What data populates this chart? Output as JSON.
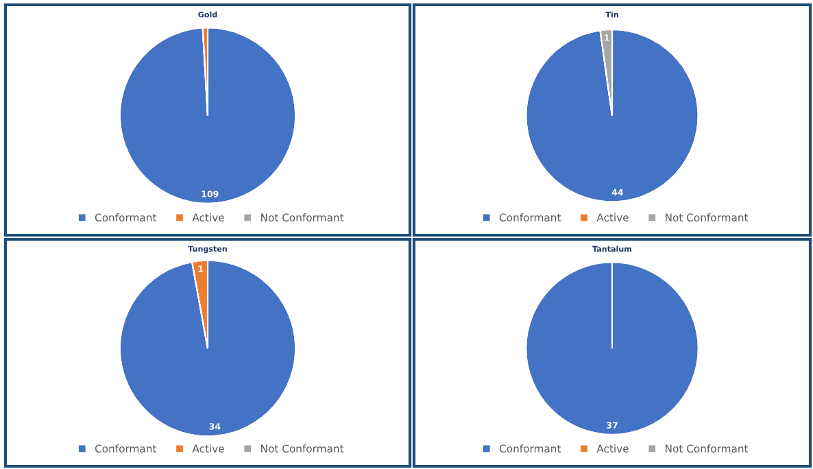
{
  "chart_data": [
    {
      "type": "pie",
      "title": "Gold",
      "categories": [
        "Conformant",
        "Active",
        "Not Conformant"
      ],
      "values": [
        109,
        1,
        0
      ],
      "colors": [
        "#4472c4",
        "#ed7d31",
        "#a5a5a5"
      ],
      "value_labels": [
        "109",
        null,
        null
      ],
      "legend": "bottom"
    },
    {
      "type": "pie",
      "title": "Tin",
      "categories": [
        "Conformant",
        "Active",
        "Not Conformant"
      ],
      "values": [
        44,
        0,
        1
      ],
      "colors": [
        "#4472c4",
        "#ed7d31",
        "#a5a5a5"
      ],
      "value_labels": [
        "44",
        null,
        "1"
      ],
      "legend": "bottom"
    },
    {
      "type": "pie",
      "title": "Tungsten",
      "categories": [
        "Conformant",
        "Active",
        "Not Conformant"
      ],
      "values": [
        34,
        1,
        0
      ],
      "colors": [
        "#4472c4",
        "#ed7d31",
        "#a5a5a5"
      ],
      "value_labels": [
        "34",
        "1",
        null
      ],
      "legend": "bottom"
    },
    {
      "type": "pie",
      "title": "Tantalum",
      "categories": [
        "Conformant",
        "Active",
        "Not Conformant"
      ],
      "values": [
        37,
        0,
        0
      ],
      "colors": [
        "#4472c4",
        "#ed7d31",
        "#a5a5a5"
      ],
      "value_labels": [
        "37",
        null,
        null
      ],
      "legend": "bottom"
    }
  ]
}
